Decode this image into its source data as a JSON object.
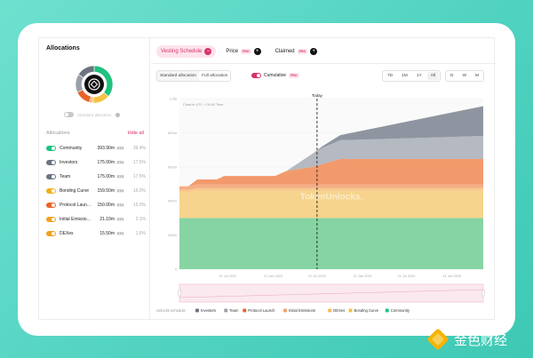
{
  "sidebar": {
    "title": "Allocations",
    "standard_label": "Standard allocation",
    "section_label": "Allocations",
    "hide_all": "Hide all",
    "rows": [
      {
        "name": "Community",
        "amount": "393.90m",
        "symbol": "STG",
        "pct": "39.4%",
        "color": "#1fc27e",
        "on": true
      },
      {
        "name": "Investors",
        "amount": "175.00m",
        "symbol": "STG",
        "pct": "17.5%",
        "color": "#6c7480",
        "on": true
      },
      {
        "name": "Team",
        "amount": "175.00m",
        "symbol": "STG",
        "pct": "17.5%",
        "color": "#6c7480",
        "on": true
      },
      {
        "name": "Bonding Curve",
        "amount": "159.50m",
        "symbol": "STG",
        "pct": "16.0%",
        "color": "#f2b020",
        "on": true
      },
      {
        "name": "Protocol Laun...",
        "amount": "150.00m",
        "symbol": "STG",
        "pct": "15.0%",
        "color": "#e8652a",
        "on": true
      },
      {
        "name": "Initial Emissio...",
        "amount": "21.10m",
        "symbol": "STG",
        "pct": "2.1%",
        "color": "#f2a020",
        "on": true
      },
      {
        "name": "DEXes",
        "amount": "15.50m",
        "symbol": "STG",
        "pct": "1.6%",
        "color": "#f2a020",
        "on": true
      }
    ],
    "donut": {
      "segments": [
        {
          "name": "Community",
          "pct": 39.4,
          "color": "#1fc27e"
        },
        {
          "name": "Bonding Curve",
          "pct": 16.0,
          "color": "#f4c243"
        },
        {
          "name": "DEXes",
          "pct": 1.6,
          "color": "#f7b85a"
        },
        {
          "name": "Initial Emissions",
          "pct": 2.1,
          "color": "#f4a36d"
        },
        {
          "name": "Protocol Launch",
          "pct": 15.0,
          "color": "#e8652a"
        },
        {
          "name": "Team",
          "pct": 17.5,
          "color": "#9aa0aa"
        },
        {
          "name": "Investors",
          "pct": 17.5,
          "color": "#6c7480"
        }
      ]
    }
  },
  "tabs": [
    {
      "label": "Vesting Schedule",
      "active": true,
      "control": "−"
    },
    {
      "label": "Price",
      "active": false,
      "pro": "PRO",
      "control": "+"
    },
    {
      "label": "Claimed",
      "active": false,
      "pro": "PRO",
      "control": "+"
    }
  ],
  "controls": {
    "standard_allocation": "Standard allocation",
    "full_allocation": "Full allocation",
    "cumulative": "Cumulative",
    "cumulative_pro": "PRO",
    "ranges": [
      "7D",
      "1M",
      "1Y",
      "All"
    ],
    "granularity": [
      "D",
      "W",
      "M"
    ]
  },
  "chart_data": {
    "type": "area",
    "stacked": true,
    "subtitle": "Chart in UTC + 00:00 Time",
    "today_label": "Today",
    "today_x": 2023.54,
    "watermark": "TokenUnlocks.",
    "x_ticks": [
      {
        "x": 2022.54,
        "label": "21 Jul 2022"
      },
      {
        "x": 2023.05,
        "label": "21 Jan 2023"
      },
      {
        "x": 2023.54,
        "label": "21 Jul 2023"
      },
      {
        "x": 2024.05,
        "label": "21 Jan 2024"
      },
      {
        "x": 2024.54,
        "label": "21 Jul 2024"
      },
      {
        "x": 2025.05,
        "label": "21 Jan 2025"
      }
    ],
    "y_ticks": [
      "0",
      "200m",
      "400m",
      "600m",
      "800m",
      "1.0B"
    ],
    "ylim": [
      0,
      1000
    ],
    "xlim": [
      2022.0,
      2025.4
    ],
    "x": [
      2022.0,
      2022.1,
      2022.2,
      2022.42,
      2022.5,
      2023.07,
      2023.2,
      2023.5,
      2023.6,
      2023.8,
      2025.4
    ],
    "series": [
      {
        "name": "Community",
        "color": "#86d4a3",
        "values": [
          300,
          300,
          300,
          300,
          300,
          300,
          300,
          300,
          300,
          300,
          300
        ]
      },
      {
        "name": "Bonding Curve",
        "color": "#f6d48d",
        "values": [
          150,
          150,
          160,
          160,
          160,
          160,
          160,
          160,
          160,
          160,
          160
        ]
      },
      {
        "name": "DEXes",
        "color": "#f8c98a",
        "values": [
          15,
          15,
          15,
          15,
          15,
          15,
          15,
          15,
          15,
          15,
          15
        ]
      },
      {
        "name": "Initial Emissions",
        "color": "#f6ad84",
        "values": [
          21,
          21,
          21,
          21,
          21,
          21,
          21,
          21,
          21,
          21,
          21
        ]
      },
      {
        "name": "Protocol Launch",
        "color": "#f29a6c",
        "values": [
          0,
          0,
          30,
          30,
          50,
          50,
          80,
          105,
          120,
          150,
          150
        ]
      },
      {
        "name": "Team",
        "color": "#b5b9c1",
        "values": [
          0,
          0,
          0,
          0,
          0,
          0,
          0,
          80,
          95,
          110,
          135
        ]
      },
      {
        "name": "Investors",
        "color": "#8f95a0",
        "values": [
          0,
          0,
          0,
          0,
          0,
          0,
          0,
          0,
          10,
          30,
          175
        ]
      }
    ],
    "legend_title": "Unlocks schedule",
    "legend": [
      {
        "name": "Investors",
        "color": "#6c7480"
      },
      {
        "name": "Team",
        "color": "#9aa0aa"
      },
      {
        "name": "Protocol Launch",
        "color": "#e8652a"
      },
      {
        "name": "Initial Emissions",
        "color": "#f4a36d"
      },
      {
        "name": "DEXes",
        "color": "#f7b85a"
      },
      {
        "name": "Bonding Curve",
        "color": "#f4c243"
      },
      {
        "name": "Community",
        "color": "#1fc27e"
      }
    ]
  },
  "branding": {
    "text": "金色财经"
  }
}
